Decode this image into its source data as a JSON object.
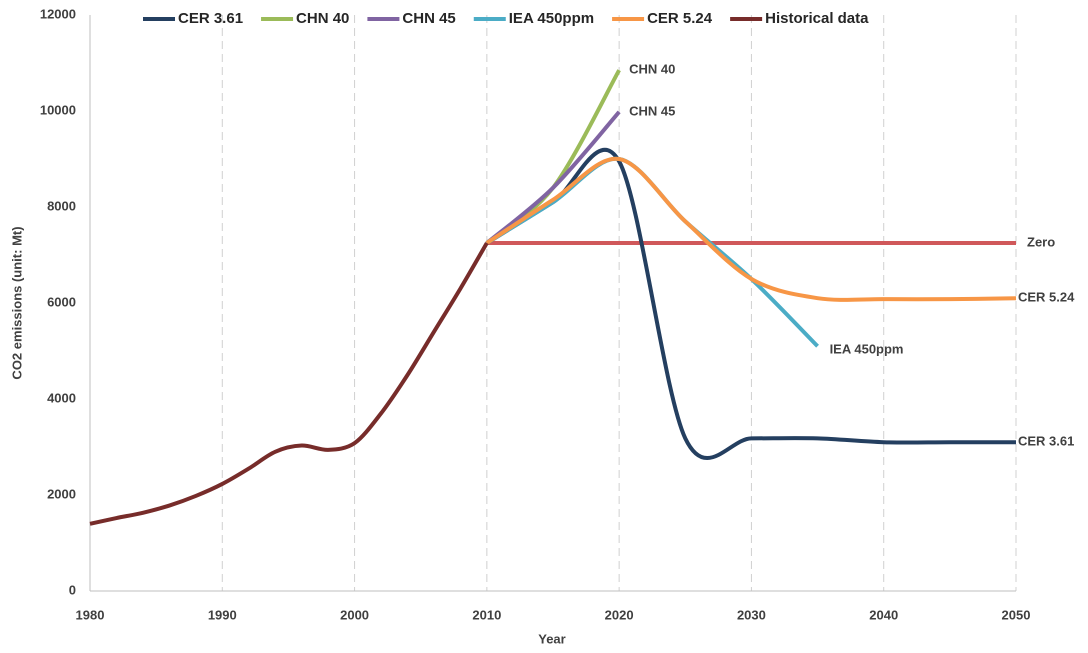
{
  "chart_data": {
    "type": "line",
    "x_label": "Year",
    "y_label": "CO2 emissions (unit: Mt)",
    "xlim": [
      1980,
      2050
    ],
    "xticks": [
      1980,
      1990,
      2000,
      2010,
      2020,
      2030,
      2040,
      2050
    ],
    "ylim": [
      0,
      12000
    ],
    "yticks": [
      0,
      2000,
      4000,
      6000,
      8000,
      10000,
      12000
    ],
    "grid": "x",
    "smooth": true,
    "legend": "top",
    "series": [
      {
        "name": "Zero",
        "color": "#d0585a",
        "in_legend": false,
        "end_label": true,
        "x": [
          2010,
          2050
        ],
        "values": [
          7250,
          7250
        ]
      },
      {
        "name": "CER 3.61",
        "color": "#243f60",
        "in_legend": true,
        "end_label": true,
        "x": [
          2010,
          2015,
          2020,
          2025,
          2030,
          2035,
          2040,
          2045,
          2050
        ],
        "values": [
          7250,
          8100,
          8950,
          3180,
          3180,
          3180,
          3100,
          3100,
          3100
        ]
      },
      {
        "name": "CHN 40",
        "color": "#9bbb59",
        "in_legend": true,
        "end_label": true,
        "x": [
          2010,
          2015,
          2020
        ],
        "values": [
          7250,
          8400,
          10850
        ]
      },
      {
        "name": "CHN 45",
        "color": "#8064a2",
        "in_legend": true,
        "end_label": true,
        "x": [
          2010,
          2015,
          2020
        ],
        "values": [
          7250,
          8400,
          9980
        ]
      },
      {
        "name": "IEA 450ppm",
        "color": "#4bacc6",
        "in_legend": true,
        "end_label": true,
        "x": [
          2010,
          2015,
          2020,
          2025,
          2030,
          2035
        ],
        "values": [
          7250,
          8100,
          9000,
          7700,
          6500,
          5100
        ]
      },
      {
        "name": "CER 5.24",
        "color": "#f79646",
        "in_legend": true,
        "end_label": true,
        "x": [
          2010,
          2015,
          2020,
          2025,
          2030,
          2035,
          2040,
          2045,
          2050
        ],
        "values": [
          7250,
          8150,
          9000,
          7700,
          6500,
          6100,
          6080,
          6080,
          6100
        ]
      },
      {
        "name": "Historical data",
        "color": "#772c2a",
        "in_legend": true,
        "end_label": false,
        "x": [
          1980,
          1982,
          1984,
          1986,
          1988,
          1990,
          1992,
          1994,
          1996,
          1998,
          2000,
          2002,
          2004,
          2006,
          2008,
          2010
        ],
        "values": [
          1400,
          1520,
          1630,
          1780,
          1980,
          2230,
          2550,
          2900,
          3030,
          2940,
          3080,
          3700,
          4500,
          5400,
          6300,
          7250
        ]
      }
    ]
  }
}
